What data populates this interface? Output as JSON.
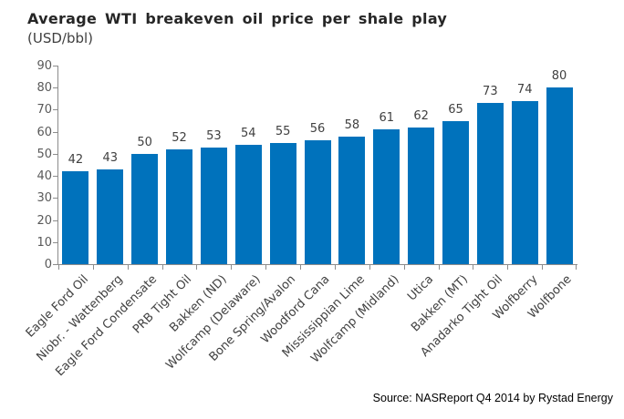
{
  "header": {
    "title": "Average WTI breakeven oil price per shale play",
    "subtitle": "(USD/bbl)"
  },
  "footer": {
    "source": "Source: NASReport Q4 2014 by Rystad Energy"
  },
  "chart_data": {
    "type": "bar",
    "title": "Average WTI breakeven oil price per shale play",
    "subtitle": "(USD/bbl)",
    "categories": [
      "Eagle Ford Oil",
      "Niobr. - Wattenberg",
      "Eagle Ford Condensate",
      "PRB Tight Oil",
      "Bakken (ND)",
      "Wolfcamp (Delaware)",
      "Bone Spring/Avalon",
      "Woodford Cana",
      "Mississippian Lime",
      "Wolfcamp (Midland)",
      "Utica",
      "Bakken (MT)",
      "Anadarko Tight Oil",
      "Wolfberry",
      "Wolfbone"
    ],
    "values": [
      42,
      43,
      50,
      52,
      53,
      54,
      55,
      56,
      58,
      61,
      62,
      65,
      73,
      74,
      80
    ],
    "xlabel": "",
    "ylabel": "",
    "ylim": [
      0,
      90
    ],
    "yticks": [
      0,
      10,
      20,
      30,
      40,
      50,
      60,
      70,
      80,
      90
    ],
    "grid": false,
    "legend": "none",
    "data_labels": true,
    "bar_color": "#0072BC",
    "value_label_color": "#404040",
    "category_label_color": "#404040",
    "ytick_label_color": "#595959",
    "axis_color": "#8C8C8C",
    "source": "Source: NASReport Q4 2014 by Rystad Energy"
  }
}
